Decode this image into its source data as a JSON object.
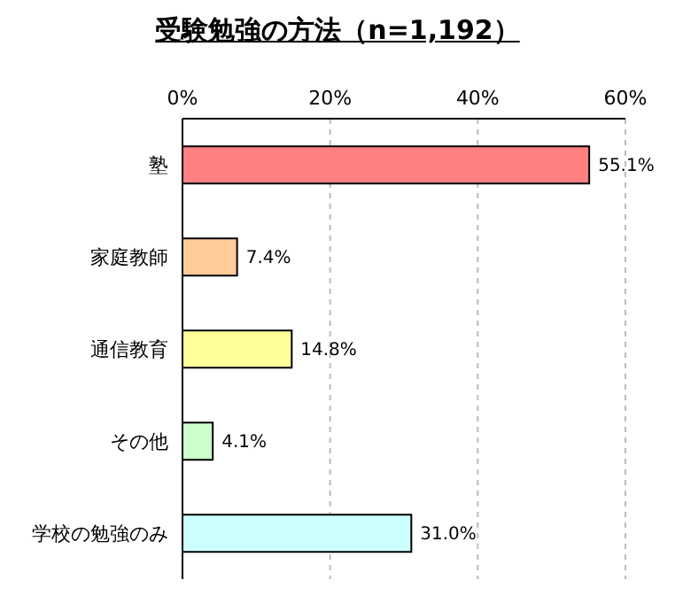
{
  "chart_data": {
    "type": "bar",
    "orientation": "horizontal",
    "title": "受験勉強の方法（n=1,192）",
    "categories": [
      "塾",
      "家庭教師",
      "通信教育",
      "その他",
      "学校の勉強のみ"
    ],
    "values": [
      55.1,
      7.4,
      14.8,
      4.1,
      31.0
    ],
    "value_labels": [
      "55.1%",
      "7.4%",
      "14.8%",
      "4.1%",
      "31.0%"
    ],
    "colors": [
      "#ff8080",
      "#ffcc99",
      "#ffff99",
      "#ccffcc",
      "#ccffff"
    ],
    "xlim": [
      0,
      60
    ],
    "xticks": [
      {
        "value": 0,
        "label": "0%"
      },
      {
        "value": 20,
        "label": "20%"
      },
      {
        "value": 40,
        "label": "40%"
      },
      {
        "value": 60,
        "label": "60%"
      }
    ],
    "grid": "x"
  }
}
